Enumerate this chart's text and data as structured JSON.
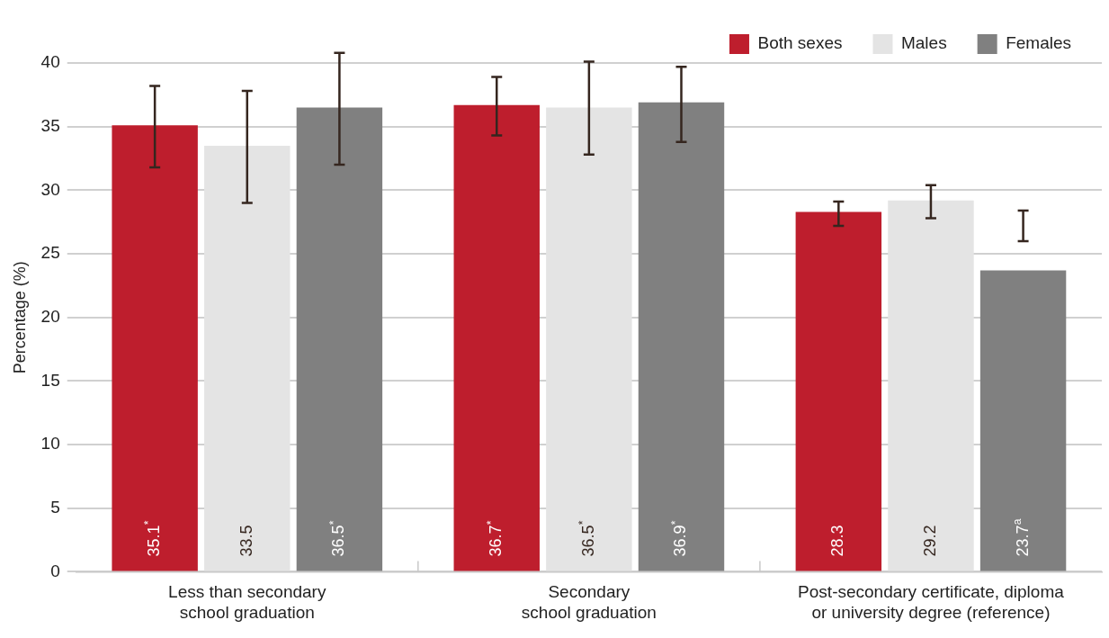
{
  "chart_data": {
    "type": "bar",
    "ylabel": "Percentage (%)",
    "categories": [
      "Less than secondary\nschool graduation",
      "Secondary\nschool graduation",
      "Post-secondary certificate, diploma\nor university degree (reference)"
    ],
    "series": [
      {
        "name": "Both sexes",
        "color": "#be1e2d",
        "values": [
          35.1,
          36.7,
          28.3
        ],
        "errors": [
          [
            31.8,
            38.2
          ],
          [
            34.3,
            38.9
          ],
          [
            27.2,
            29.1
          ]
        ],
        "value_labels": [
          "35.1$^{*}$",
          "36.7$^{*}$",
          "28.3"
        ]
      },
      {
        "name": "Males",
        "color": "#e4e4e4",
        "values": [
          33.5,
          36.5,
          29.2
        ],
        "errors": [
          [
            29.0,
            37.8
          ],
          [
            32.8,
            40.1
          ],
          [
            27.8,
            30.4
          ]
        ],
        "value_labels": [
          "33.5",
          "36.5$^{*}$",
          "29.2"
        ]
      },
      {
        "name": "Females",
        "color": "#808080",
        "values": [
          36.5,
          36.9,
          23.7
        ],
        "errors": [
          [
            32.0,
            40.8
          ],
          [
            33.8,
            39.7
          ],
          [
            26.0,
            28.4
          ]
        ],
        "value_labels": [
          "36.5$^{*}$",
          "36.9$^{*}$",
          "23.7$^{a}$"
        ]
      }
    ],
    "ylim": [
      0,
      40
    ],
    "yticks": [
      0,
      5,
      10,
      15,
      20,
      25,
      30,
      35,
      40
    ],
    "grid": "y",
    "legend": "top right"
  }
}
